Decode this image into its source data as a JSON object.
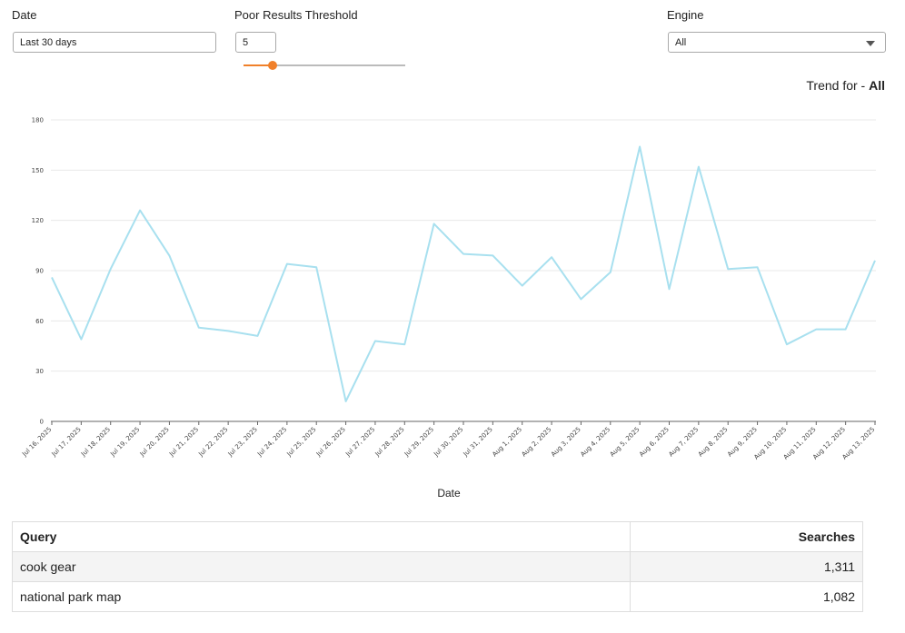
{
  "filters": {
    "date": {
      "label": "Date",
      "value": "Last 30 days"
    },
    "threshold": {
      "label": "Poor Results Threshold",
      "value": "5",
      "slider_fraction": 0.18
    },
    "engine": {
      "label": "Engine",
      "value": "All"
    }
  },
  "trend": {
    "prefix": "Trend for - ",
    "value": "All"
  },
  "colors": {
    "accent": "#f0802a",
    "line": "#a8e0ef"
  },
  "chart_data": {
    "type": "line",
    "xlabel": "Date",
    "ylabel": "",
    "ylim": [
      0,
      180
    ],
    "yticks": [
      0,
      30,
      60,
      90,
      120,
      150,
      180
    ],
    "grid": true,
    "categories": [
      "Jul 16, 2025",
      "Jul 17, 2025",
      "Jul 18, 2025",
      "Jul 19, 2025",
      "Jul 20, 2025",
      "Jul 21, 2025",
      "Jul 22, 2025",
      "Jul 23, 2025",
      "Jul 24, 2025",
      "Jul 25, 2025",
      "Jul 26, 2025",
      "Jul 27, 2025",
      "Jul 28, 2025",
      "Jul 29, 2025",
      "Jul 30, 2025",
      "Jul 31, 2025",
      "Aug 1, 2025",
      "Aug 2, 2025",
      "Aug 3, 2025",
      "Aug 4, 2025",
      "Aug 5, 2025",
      "Aug 6, 2025",
      "Aug 7, 2025",
      "Aug 8, 2025",
      "Aug 9, 2025",
      "Aug 10, 2025",
      "Aug 11, 2025",
      "Aug 12, 2025",
      "Aug 13, 2025"
    ],
    "series": [
      {
        "values": [
          86,
          49,
          91,
          126,
          99,
          56,
          54,
          51,
          94,
          92,
          12,
          48,
          46,
          118,
          100,
          99,
          81,
          98,
          73,
          89,
          164,
          79,
          152,
          91,
          92,
          46,
          55,
          55,
          96
        ]
      }
    ]
  },
  "table": {
    "headers": {
      "query": "Query",
      "searches": "Searches"
    },
    "rows": [
      {
        "query": "cook gear",
        "searches": "1,311"
      },
      {
        "query": "national park map",
        "searches": "1,082"
      }
    ]
  }
}
